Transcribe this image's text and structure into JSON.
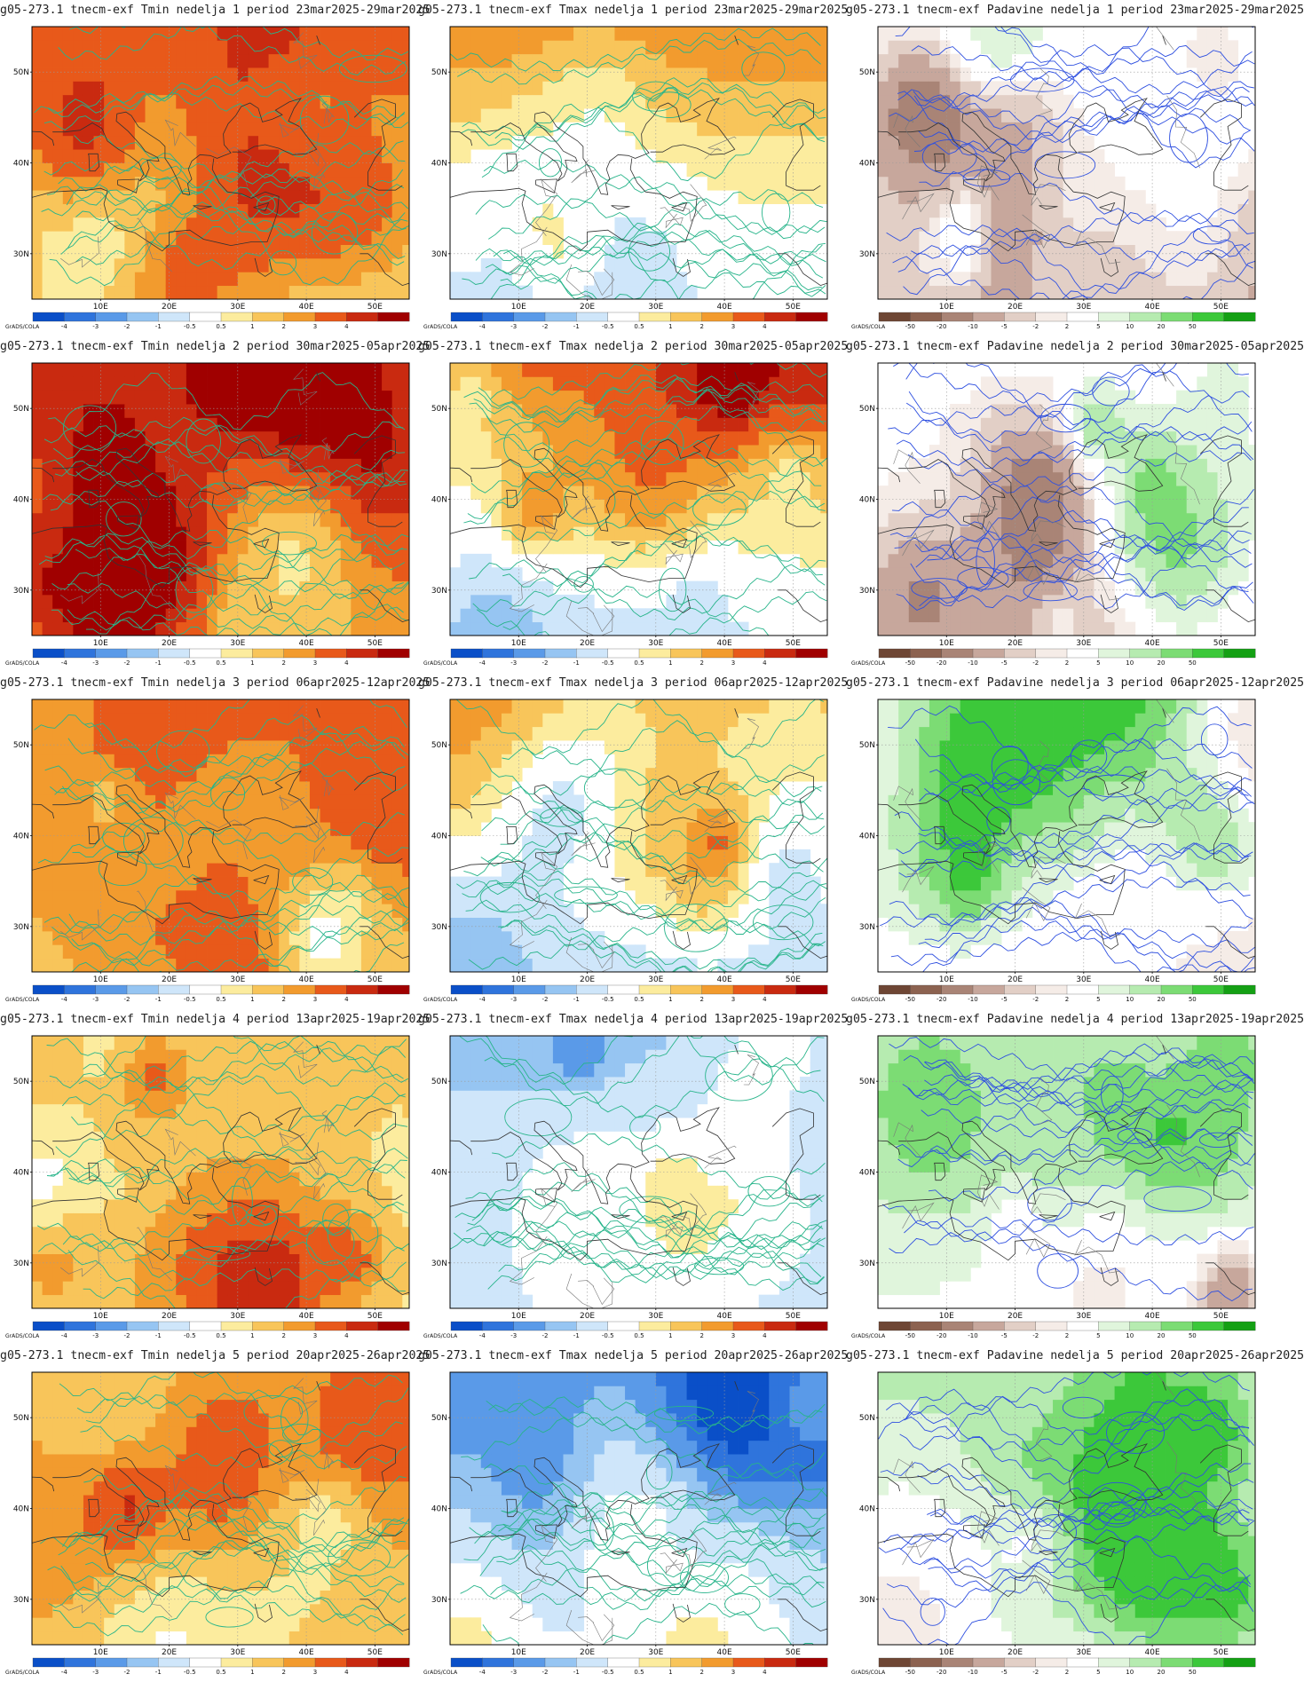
{
  "credit": "GrADS/COLA",
  "lat_ticks": [
    "30N",
    "40N",
    "50N"
  ],
  "lon_ticks": [
    "10E",
    "20E",
    "30E",
    "40E",
    "50E"
  ],
  "temp_scale": {
    "ticks": [
      "-4",
      "-3",
      "-2",
      "-1",
      "-0.5",
      "0.5",
      "1",
      "2",
      "3",
      "4"
    ],
    "colors": [
      "#0a4fc8",
      "#2f74dc",
      "#5a9ae8",
      "#96c5f2",
      "#cfe6fa",
      "#ffffff",
      "#fcec9e",
      "#f8c55a",
      "#f29b2e",
      "#e8591a",
      "#c92a10",
      "#a00000"
    ]
  },
  "precip_scale": {
    "ticks": [
      "-50",
      "-20",
      "-10",
      "-5",
      "-2",
      "2",
      "5",
      "10",
      "20",
      "50"
    ],
    "colors": [
      "#6e4634",
      "#8c6250",
      "#a98476",
      "#c7a79c",
      "#e2cfc6",
      "#f5ece7",
      "#ffffff",
      "#e0f5dc",
      "#b6ebb0",
      "#7cdc74",
      "#3cc83a",
      "#14a014"
    ]
  },
  "rows": [
    {
      "titles": [
        "g05-273.1 tnecm-exf Tmin nedelja 1 period 23mar2025-29mar2025",
        "g05-273.1 tnecm-exf Tmax nedelja 1 period 23mar2025-29mar2025",
        "g05-273.1 tnecm-exf Padavine nedelja 1 period 23mar2025-29mar2025"
      ]
    },
    {
      "titles": [
        "g05-273.1 tnecm-exf Tmin nedelja 2 period 30mar2025-05apr2025",
        "g05-273.1 tnecm-exf Tmax nedelja 2 period 30mar2025-05apr2025",
        "g05-273.1 tnecm-exf Padavine nedelja 2 period 30mar2025-05apr2025"
      ]
    },
    {
      "titles": [
        "g05-273.1 tnecm-exf Tmin nedelja 3 period 06apr2025-12apr2025",
        "g05-273.1 tnecm-exf Tmax nedelja 3 period 06apr2025-12apr2025",
        "g05-273.1 tnecm-exf Padavine nedelja 3 period 06apr2025-12apr2025"
      ]
    },
    {
      "titles": [
        "g05-273.1 tnecm-exf Tmin nedelja 4 period 13apr2025-19apr2025",
        "g05-273.1 tnecm-exf Tmax nedelja 4 period 13apr2025-19apr2025",
        "g05-273.1 tnecm-exf Padavine nedelja 4 period 13apr2025-19apr2025"
      ]
    },
    {
      "titles": [
        "g05-273.1 tnecm-exf Tmin nedelja 5 period 20apr2025-26apr2025",
        "g05-273.1 tnecm-exf Tmax nedelja 5 period 20apr2025-26apr2025",
        "g05-273.1 tnecm-exf Padavine nedelja 5 period 20apr2025-26apr2025"
      ]
    }
  ]
}
